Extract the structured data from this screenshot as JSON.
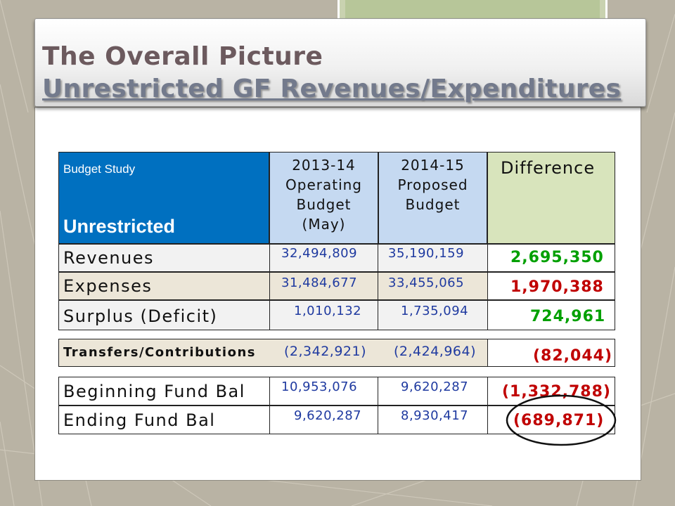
{
  "title": {
    "line1": "The Overall Picture",
    "line2": "Unrestricted GF Revenues/Expenditures"
  },
  "table": {
    "corner_label": "Budget Study",
    "corner_title": "Unrestricted",
    "col1": [
      "2013-14",
      "Operating",
      "Budget",
      "(May)"
    ],
    "col2": [
      "2014-15",
      "Proposed",
      "Budget"
    ],
    "col3": "Difference",
    "rows": [
      {
        "label": "Revenues",
        "v1": "32,494,809",
        "v2": "35,190,159",
        "diff": "2,695,350"
      },
      {
        "label": "Expenses",
        "v1": "31,484,677",
        "v2": "33,455,065",
        "diff": "1,970,388"
      },
      {
        "label": "Surplus (Deficit)",
        "v1": "1,010,132",
        "v2": "1,735,094",
        "diff": "724,961"
      },
      {
        "label": "Transfers/Contributions",
        "v1": "(2,342,921)",
        "v2": "(2,424,964)",
        "diff": "(82,044)"
      },
      {
        "label": "Beginning Fund Bal",
        "v1": "10,953,076",
        "v2": "9,620,287",
        "diff": "(1,332,788)"
      },
      {
        "label": "Ending Fund Bal",
        "v1": "9,620,287",
        "v2": "8,930,417",
        "diff": "(689,871)"
      }
    ]
  },
  "colors": {
    "header_blue": "#0070c0",
    "header_light_blue": "#c5d9f1",
    "header_green": "#d8e4bc",
    "positive_diff": "#00a000",
    "negative_diff": "#c00000",
    "number_blue": "#1f3aa0"
  }
}
